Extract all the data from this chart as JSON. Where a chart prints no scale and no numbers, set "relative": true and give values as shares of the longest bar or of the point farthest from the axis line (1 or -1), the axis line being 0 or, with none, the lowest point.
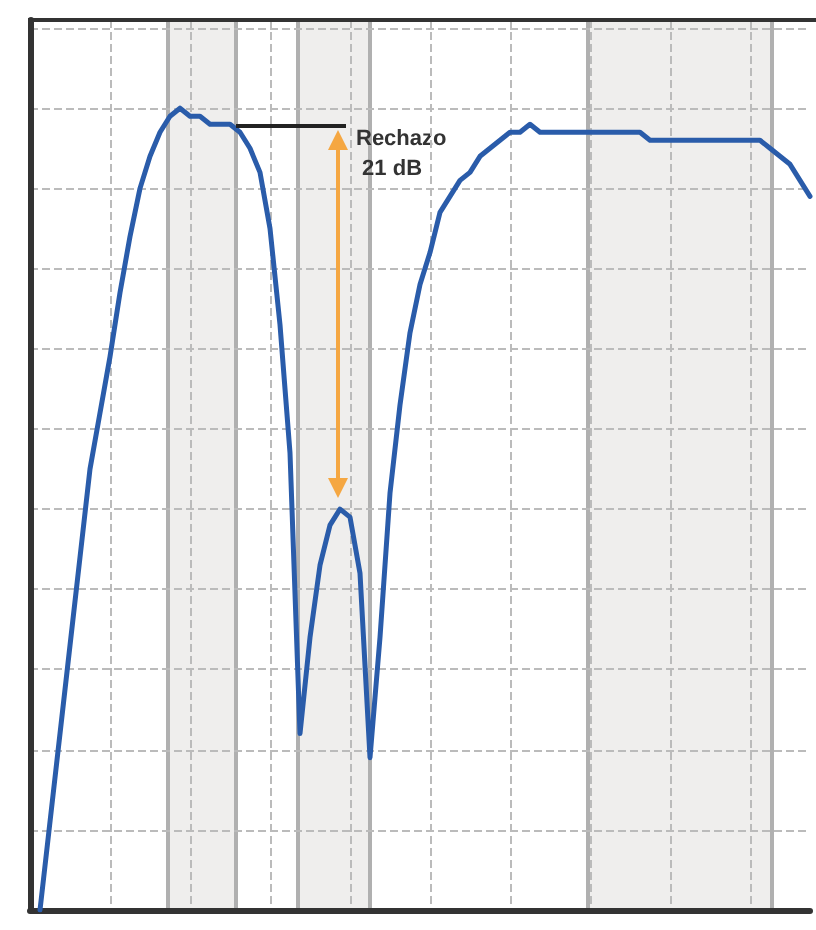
{
  "chart_data": {
    "type": "line",
    "relative": true,
    "grid": true,
    "marker": "none",
    "line_style": "solid",
    "categories": [
      null,
      null,
      null,
      null,
      null,
      null,
      null,
      null,
      null,
      null,
      null,
      null,
      null,
      null,
      null,
      null,
      null,
      null,
      null,
      null,
      null,
      null,
      null,
      null,
      null,
      null,
      null,
      null,
      null,
      null,
      null,
      null,
      null,
      null,
      null,
      null,
      null,
      null,
      null,
      null,
      null,
      null,
      null,
      null,
      null,
      null,
      null,
      null,
      null,
      null,
      null,
      null,
      null,
      null,
      null,
      null,
      null,
      null,
      null,
      null,
      null,
      null,
      null,
      null,
      null,
      null,
      null,
      null,
      null,
      null,
      null,
      null,
      null,
      null,
      null,
      null,
      null,
      null,
      null
    ],
    "series": [
      {
        "color": "#2a5caa",
        "values": [
          null,
          0,
          0.11,
          0.22,
          0.33,
          0.44,
          0.55,
          0.62,
          0.69,
          0.77,
          0.84,
          0.9,
          0.94,
          0.97,
          0.99,
          1,
          0.99,
          0.99,
          0.98,
          0.98,
          0.98,
          0.97,
          0.95,
          0.92,
          0.85,
          0.73,
          0.57,
          0.22,
          0.34,
          0.43,
          0.48,
          0.5,
          0.49,
          0.42,
          0.19,
          0.34,
          0.52,
          0.63,
          0.72,
          0.78,
          0.82,
          0.87,
          0.89,
          0.91,
          0.92,
          0.94,
          0.95,
          0.96,
          0.97,
          0.97,
          0.98,
          0.97,
          0.97,
          0.97,
          0.97,
          0.97,
          0.97,
          0.97,
          0.97,
          0.97,
          0.97,
          0.97,
          0.96,
          0.96,
          0.96,
          0.96,
          0.96,
          0.96,
          0.96,
          0.96,
          0.96,
          0.96,
          0.96,
          0.96,
          0.95,
          0.94,
          0.93,
          0.91,
          0.89
        ]
      }
    ],
    "annotations": [
      "Rechazo 21 dB"
    ]
  }
}
